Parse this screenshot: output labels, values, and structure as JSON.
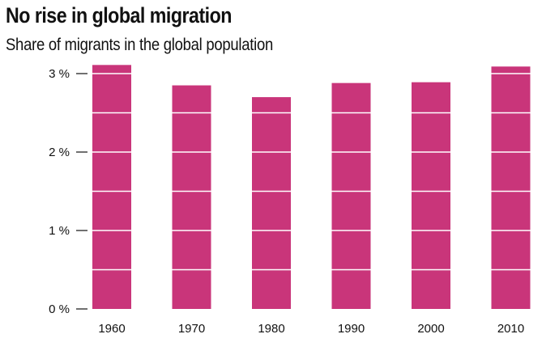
{
  "chart_data": {
    "type": "bar",
    "title": "No rise in global migration",
    "subtitle": "Share of migrants in the global population",
    "categories": [
      "1960",
      "1970",
      "1980",
      "1990",
      "2000",
      "2010"
    ],
    "values": [
      3.11,
      2.85,
      2.7,
      2.88,
      2.89,
      3.09
    ],
    "ylim": [
      0,
      3
    ],
    "y_ticks": [
      0,
      1,
      2,
      3
    ],
    "y_tick_labels": [
      "0 %",
      "1 %",
      "2 %",
      "3 %"
    ],
    "gridlines_every": 0.5,
    "grid": true,
    "bar_color": "#C9357A",
    "grid_color": "#ffffff",
    "axis_color": "#111111"
  }
}
